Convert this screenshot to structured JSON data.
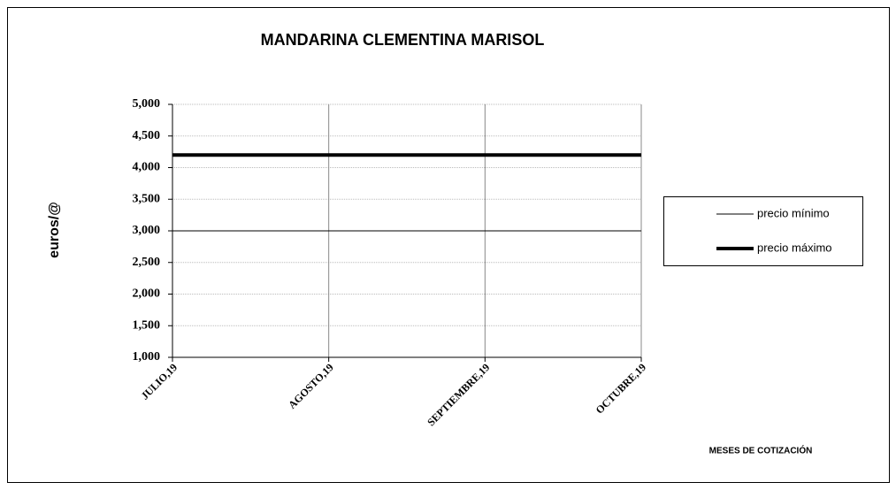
{
  "chart_data": {
    "type": "line",
    "title": "MANDARINA CLEMENTINA MARISOL",
    "y_label": "euros/@",
    "x_label": "MESES DE COTIZACIÓN",
    "categories": [
      "JULIO,19",
      "AGOSTO,19",
      "SEPTIEMBRE,19",
      "OCTUBRE,19"
    ],
    "series": [
      {
        "name": "precio mínimo",
        "color": "#000000",
        "line_width": 1,
        "values": [
          3,
          3,
          3,
          3
        ]
      },
      {
        "name": "precio máximo",
        "color": "#000000",
        "line_width": 4,
        "values": [
          4.2,
          4.2,
          4.2,
          4.2
        ]
      }
    ],
    "ylim": [
      1,
      5
    ],
    "yticks": [
      {
        "value": 1,
        "label": "1,000"
      },
      {
        "value": 1.5,
        "label": "1,500"
      },
      {
        "value": 2,
        "label": "2,000"
      },
      {
        "value": 2.5,
        "label": "2,500"
      },
      {
        "value": 3,
        "label": "3,000"
      },
      {
        "value": 3.5,
        "label": "3,500"
      },
      {
        "value": 4,
        "label": "4,000"
      },
      {
        "value": 4.5,
        "label": "4,500"
      },
      {
        "value": 5,
        "label": "5,000"
      }
    ],
    "grid": true,
    "legend": "right"
  }
}
